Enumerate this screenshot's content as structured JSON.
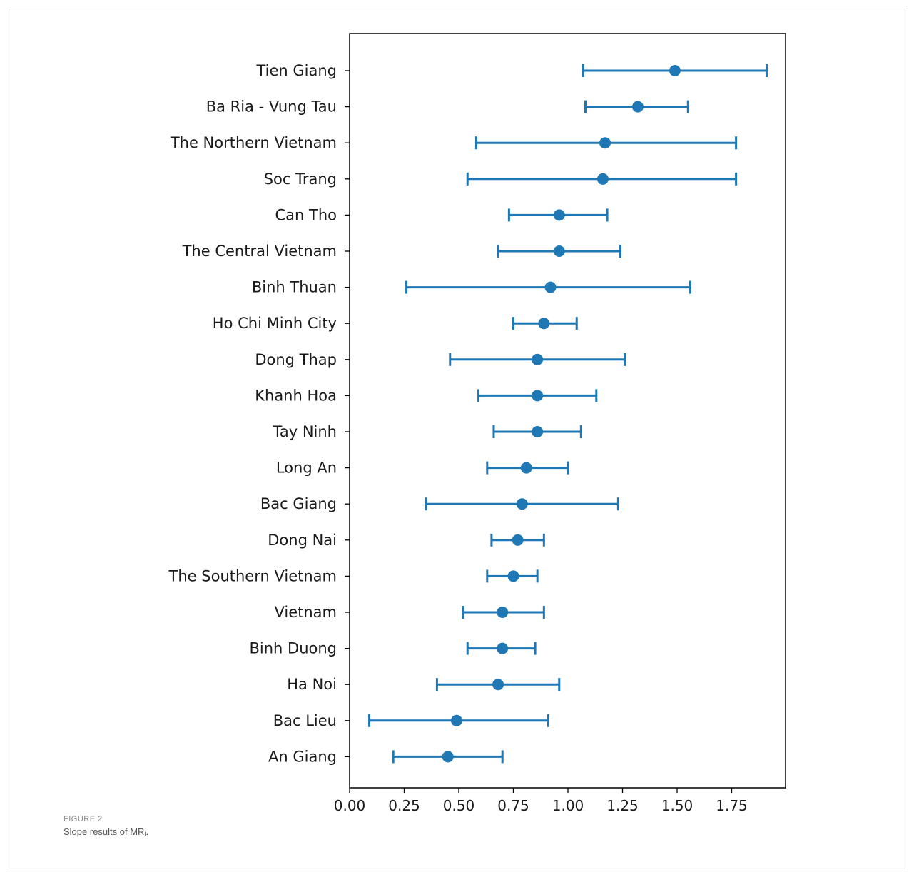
{
  "figure": {
    "label": "FIGURE 2",
    "caption": "Slope results of MRᵢ."
  },
  "chart_data": {
    "type": "errorbar",
    "title": "",
    "xlabel": "",
    "ylabel": "",
    "xlim": [
      0,
      2.0
    ],
    "xticks": [
      0.0,
      0.25,
      0.5,
      0.75,
      1.0,
      1.25,
      1.5,
      1.75
    ],
    "xtick_labels": [
      "0.00",
      "0.25",
      "0.50",
      "0.75",
      "1.00",
      "1.25",
      "1.50",
      "1.75"
    ],
    "color": "#1f77b4",
    "grid": false,
    "categories": [
      "Tien Giang",
      "Ba Ria - Vung Tau",
      "The Northern Vietnam",
      "Soc Trang",
      "Can Tho",
      "The Central Vietnam",
      "Binh Thuan",
      "Ho Chi Minh City",
      "Dong Thap",
      "Khanh Hoa",
      "Tay Ninh",
      "Long An",
      "Bac Giang",
      "Dong Nai",
      "The Southern Vietnam",
      "Vietnam",
      "Binh Duong",
      "Ha Noi",
      "Bac Lieu",
      "An Giang"
    ],
    "estimate": [
      1.49,
      1.32,
      1.17,
      1.16,
      0.96,
      0.96,
      0.92,
      0.89,
      0.86,
      0.86,
      0.86,
      0.81,
      0.79,
      0.77,
      0.75,
      0.7,
      0.7,
      0.68,
      0.49,
      0.45
    ],
    "lower": [
      1.07,
      1.08,
      0.58,
      0.54,
      0.73,
      0.68,
      0.26,
      0.75,
      0.46,
      0.59,
      0.66,
      0.63,
      0.35,
      0.65,
      0.63,
      0.52,
      0.54,
      0.4,
      0.09,
      0.2
    ],
    "upper": [
      1.91,
      1.55,
      1.77,
      1.77,
      1.18,
      1.24,
      1.56,
      1.04,
      1.26,
      1.13,
      1.06,
      1.0,
      1.23,
      0.89,
      0.86,
      0.89,
      0.85,
      0.96,
      0.91,
      0.7
    ]
  }
}
